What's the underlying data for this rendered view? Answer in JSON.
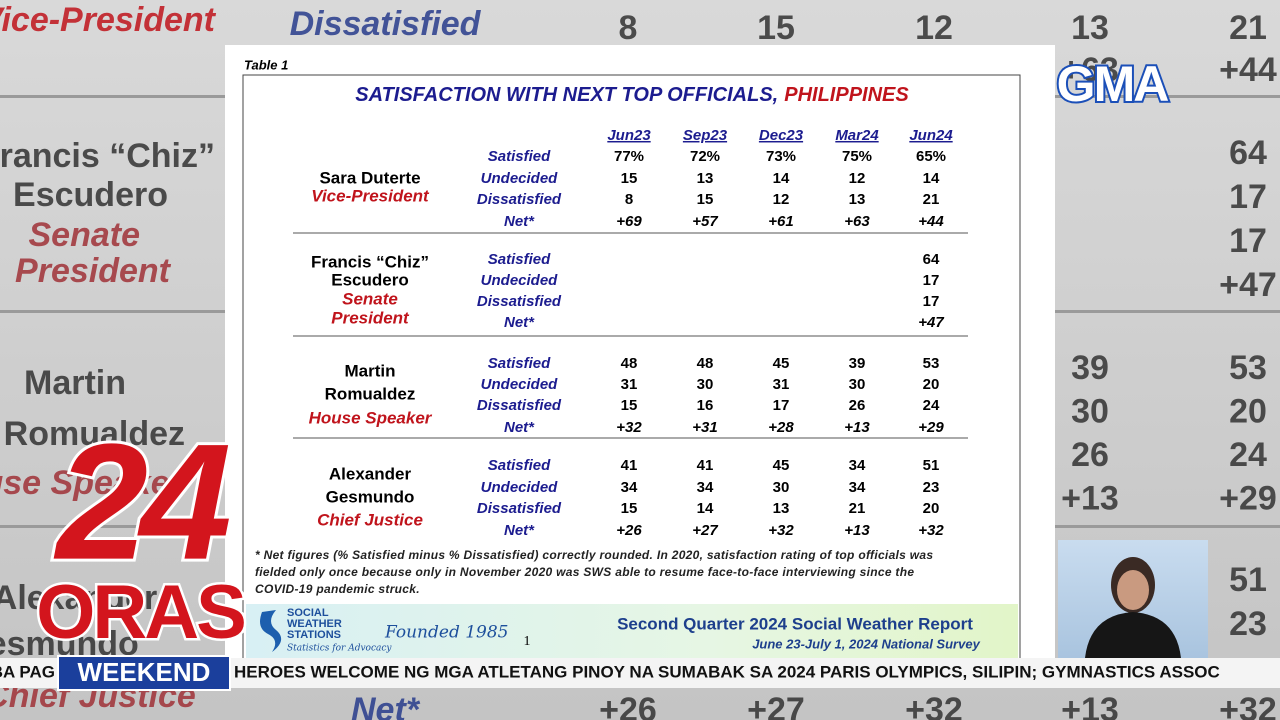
{
  "document": {
    "table_label": "Table 1",
    "title": {
      "main": "SATISFACTION WITH NEXT TOP OFFICIALS,",
      "highlight": "PHILIPPINES"
    },
    "columns": [
      "Jun23",
      "Sep23",
      "Dec23",
      "Mar24",
      "Jun24"
    ],
    "row_labels": [
      "Satisfied",
      "Undecided",
      "Dissatisfied",
      "Net*"
    ],
    "officials": [
      {
        "name_lines": [
          "Sara Duterte"
        ],
        "position_lines": [
          "Vice-President"
        ],
        "values": [
          [
            "77%",
            "72%",
            "73%",
            "75%",
            "65%"
          ],
          [
            "15",
            "13",
            "14",
            "12",
            "14"
          ],
          [
            "8",
            "15",
            "12",
            "13",
            "21"
          ],
          [
            "+69",
            "+57",
            "+61",
            "+63",
            "+44"
          ]
        ]
      },
      {
        "name_lines": [
          "Francis “Chiz”",
          "Escudero"
        ],
        "position_lines": [
          "Senate",
          "President"
        ],
        "values": [
          [
            null,
            null,
            null,
            null,
            "64"
          ],
          [
            null,
            null,
            null,
            null,
            "17"
          ],
          [
            null,
            null,
            null,
            null,
            "17"
          ],
          [
            null,
            null,
            null,
            null,
            "+47"
          ]
        ]
      },
      {
        "name_lines": [
          "Martin",
          "Romualdez"
        ],
        "position_lines": [
          "House Speaker"
        ],
        "values": [
          [
            "48",
            "48",
            "45",
            "39",
            "53"
          ],
          [
            "31",
            "30",
            "31",
            "30",
            "20"
          ],
          [
            "15",
            "16",
            "17",
            "26",
            "24"
          ],
          [
            "+32",
            "+31",
            "+28",
            "+13",
            "+29"
          ]
        ]
      },
      {
        "name_lines": [
          "Alexander",
          "Gesmundo"
        ],
        "position_lines": [
          "Chief Justice"
        ],
        "values": [
          [
            "41",
            "41",
            "45",
            "34",
            "51"
          ],
          [
            "34",
            "34",
            "30",
            "34",
            "23"
          ],
          [
            "15",
            "14",
            "13",
            "21",
            "20"
          ],
          [
            "+26",
            "+27",
            "+32",
            "+13",
            "+32"
          ]
        ]
      }
    ],
    "footnote": [
      "* Net figures (% Satisfied minus % Dissatisfied) correctly rounded. In 2020, satisfaction rating of top officials was",
      "fielded only once because only in November 2020 was SWS able to resume face-to-face interviewing since the",
      "COVID-19 pandemic struck."
    ],
    "footer": {
      "org_lines": [
        "SOCIAL",
        "WEATHER",
        "STATIONS"
      ],
      "founded": "Founded 1985",
      "tagline": "Statistics for Advocacy",
      "page": "1",
      "report": "Second Quarter 2024 Social Weather Report",
      "survey": "June 23-July 1, 2024 National Survey"
    }
  },
  "broadcast": {
    "logo": "GMA",
    "show_number": "24",
    "show_name": "ORAS",
    "edition": "WEEKEND",
    "ticker_prev": "BA PAG",
    "ticker": "HEROES WELCOME NG MGA ATLETANG PINOY NA SUMABAK SA 2024 PARIS OLYMPICS, SILIPIN; GYMNASTICS ASSOC"
  }
}
